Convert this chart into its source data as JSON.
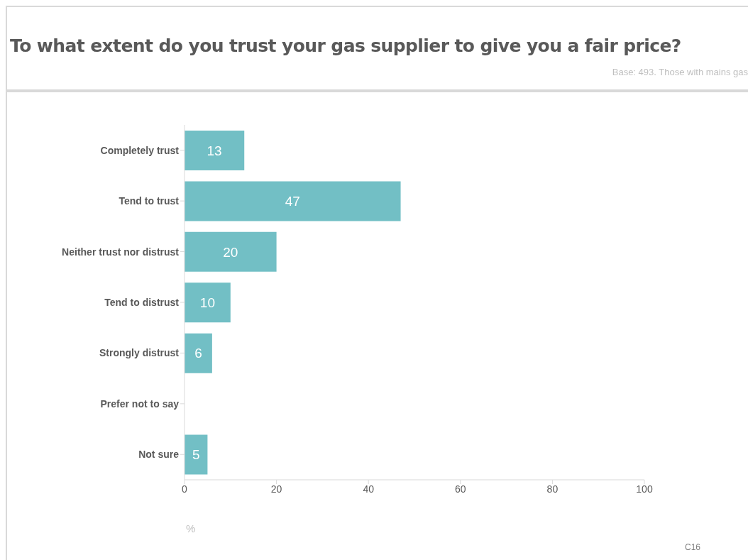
{
  "chart_data": {
    "type": "bar",
    "orientation": "horizontal",
    "title": "To what extent do you trust your gas supplier to give you a fair price?",
    "xlabel": "%",
    "annotations": [
      "Base: 493. Those with mains gas",
      "C16"
    ],
    "categories": [
      "Completely trust",
      "Tend to trust",
      "Neither trust nor distrust",
      "Tend to distrust",
      "Strongly distrust",
      "Prefer not to say",
      "Not sure"
    ],
    "values": [
      13,
      47,
      20,
      10,
      6,
      null,
      5
    ],
    "color": "#72bfc5",
    "xlim": [
      0,
      100
    ],
    "xticks": [
      0,
      20,
      40,
      60,
      80,
      100
    ],
    "data_labels": true,
    "grid": false,
    "legend": false
  }
}
